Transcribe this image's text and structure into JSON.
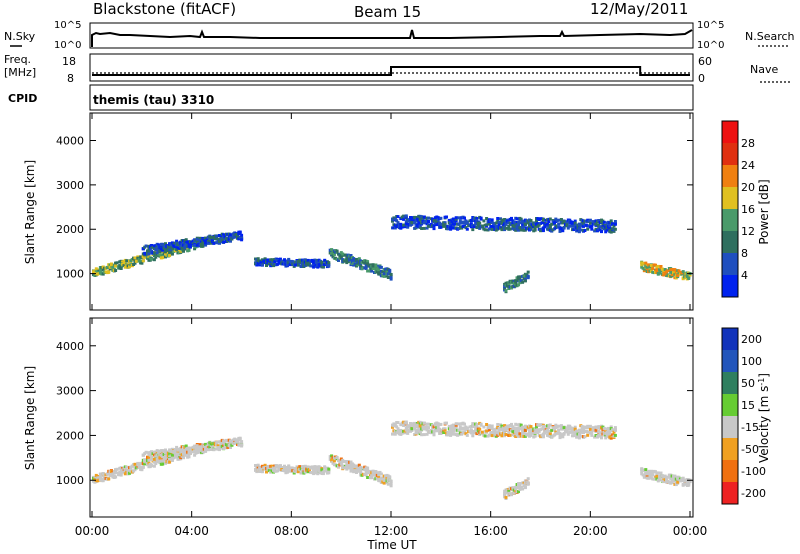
{
  "header": {
    "station": "Blackstone (fitACF)",
    "beam": "Beam 15",
    "date": "12/May/2011"
  },
  "strip_panels": {
    "nsky_label": "N.Sky",
    "nsky_ticks": [
      "10^5",
      "10^0"
    ],
    "nsearch_label": "N.Search",
    "nsearch_ticks": [
      "10^5",
      "10^0"
    ],
    "freq_label": "Freq.",
    "freq_unit": "[MHz]",
    "freq_ticks": [
      "18",
      "8"
    ],
    "nave_label": "Nave",
    "nave_ticks": [
      "60",
      "0"
    ],
    "cpid_label": "CPID",
    "cpid_value": "themis (tau) 3310"
  },
  "colorbars": {
    "power": {
      "label": "Power [dB]",
      "ticks": [
        "4",
        "8",
        "12",
        "16",
        "20",
        "24",
        "28"
      ],
      "colors": [
        "#0022ee",
        "#1f4fbf",
        "#2f6f5f",
        "#4a9a6a",
        "#e0c020",
        "#f08010",
        "#e03010",
        "#ee1111"
      ]
    },
    "velocity": {
      "label": "Velocity [m s",
      "label_sup": "-1",
      "label_end": "]",
      "ticks": [
        "200",
        "100",
        "50",
        "15",
        "-15",
        "-50",
        "-100",
        "-200"
      ],
      "colors": [
        "#1133bb",
        "#2255bb",
        "#2f7f5f",
        "#66cc33",
        "#c8c8c8",
        "#f0a020",
        "#f07010",
        "#ee2222"
      ]
    }
  },
  "chart_data": {
    "type": "heatmap",
    "title": "Blackstone (fitACF)",
    "xlabel": "Time UT",
    "ylabel": "Slant Range [km]",
    "x_ticks": [
      "00:00",
      "04:00",
      "08:00",
      "12:00",
      "16:00",
      "20:00",
      "00:00"
    ],
    "x_range_hours": [
      0,
      24
    ],
    "y_ticks": [
      1000,
      2000,
      3000,
      4000
    ],
    "y_range_km": [
      180,
      4620
    ],
    "freq_series": {
      "name": "Freq.",
      "segments": [
        {
          "t_start": 0,
          "t_end": 12,
          "value_mhz": 10.5
        },
        {
          "t_start": 12,
          "t_end": 22,
          "value_mhz": 14.5
        },
        {
          "t_start": 22,
          "t_end": 24,
          "value_mhz": 10.5
        }
      ]
    },
    "scatter_bands": [
      {
        "t_start": 0.0,
        "t_end": 4.5,
        "r_start": 1050,
        "r_end": 1750,
        "width": 180,
        "power": 14
      },
      {
        "t_start": 2.0,
        "t_end": 6.0,
        "r_start": 1550,
        "r_end": 1900,
        "width": 200,
        "power": 8
      },
      {
        "t_start": 6.5,
        "t_end": 9.5,
        "r_start": 1300,
        "r_end": 1250,
        "width": 160,
        "power": 6
      },
      {
        "t_start": 9.5,
        "t_end": 12.0,
        "r_start": 1500,
        "r_end": 1000,
        "width": 220,
        "power": 12
      },
      {
        "t_start": 12.0,
        "t_end": 21.0,
        "r_start": 2200,
        "r_end": 2100,
        "width": 280,
        "power": 6
      },
      {
        "t_start": 16.5,
        "t_end": 17.5,
        "r_start": 700,
        "r_end": 1000,
        "width": 200,
        "power": 10
      },
      {
        "t_start": 22.0,
        "t_end": 24.0,
        "r_start": 1200,
        "r_end": 950,
        "width": 200,
        "power": 20
      }
    ]
  },
  "axes": {
    "xlabel": "Time UT",
    "ylabel": "Slant Range [km]"
  }
}
